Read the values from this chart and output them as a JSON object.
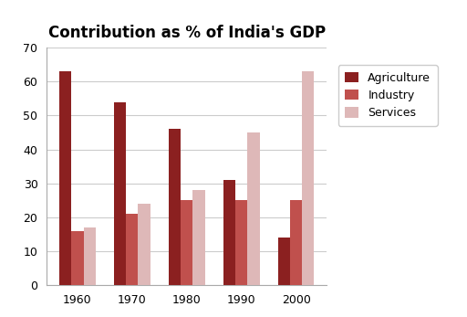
{
  "title": "Contribution as % of India's GDP",
  "years": [
    "1960",
    "1970",
    "1980",
    "1990",
    "2000"
  ],
  "agriculture": [
    63,
    54,
    46,
    31,
    14
  ],
  "industry": [
    16,
    21,
    25,
    25,
    25
  ],
  "services": [
    17,
    24,
    28,
    45,
    63
  ],
  "agriculture_color": "#8B2020",
  "industry_color": "#C0504D",
  "services_color": "#DEB8B8",
  "ylim": [
    0,
    70
  ],
  "yticks": [
    0,
    10,
    20,
    30,
    40,
    50,
    60,
    70
  ],
  "legend_labels": [
    "Agriculture",
    "Industry",
    "Services"
  ],
  "bar_width": 0.22,
  "background_color": "#FFFFFF",
  "grid_color": "#CCCCCC",
  "title_fontsize": 12,
  "legend_fontsize": 9,
  "tick_fontsize": 9
}
